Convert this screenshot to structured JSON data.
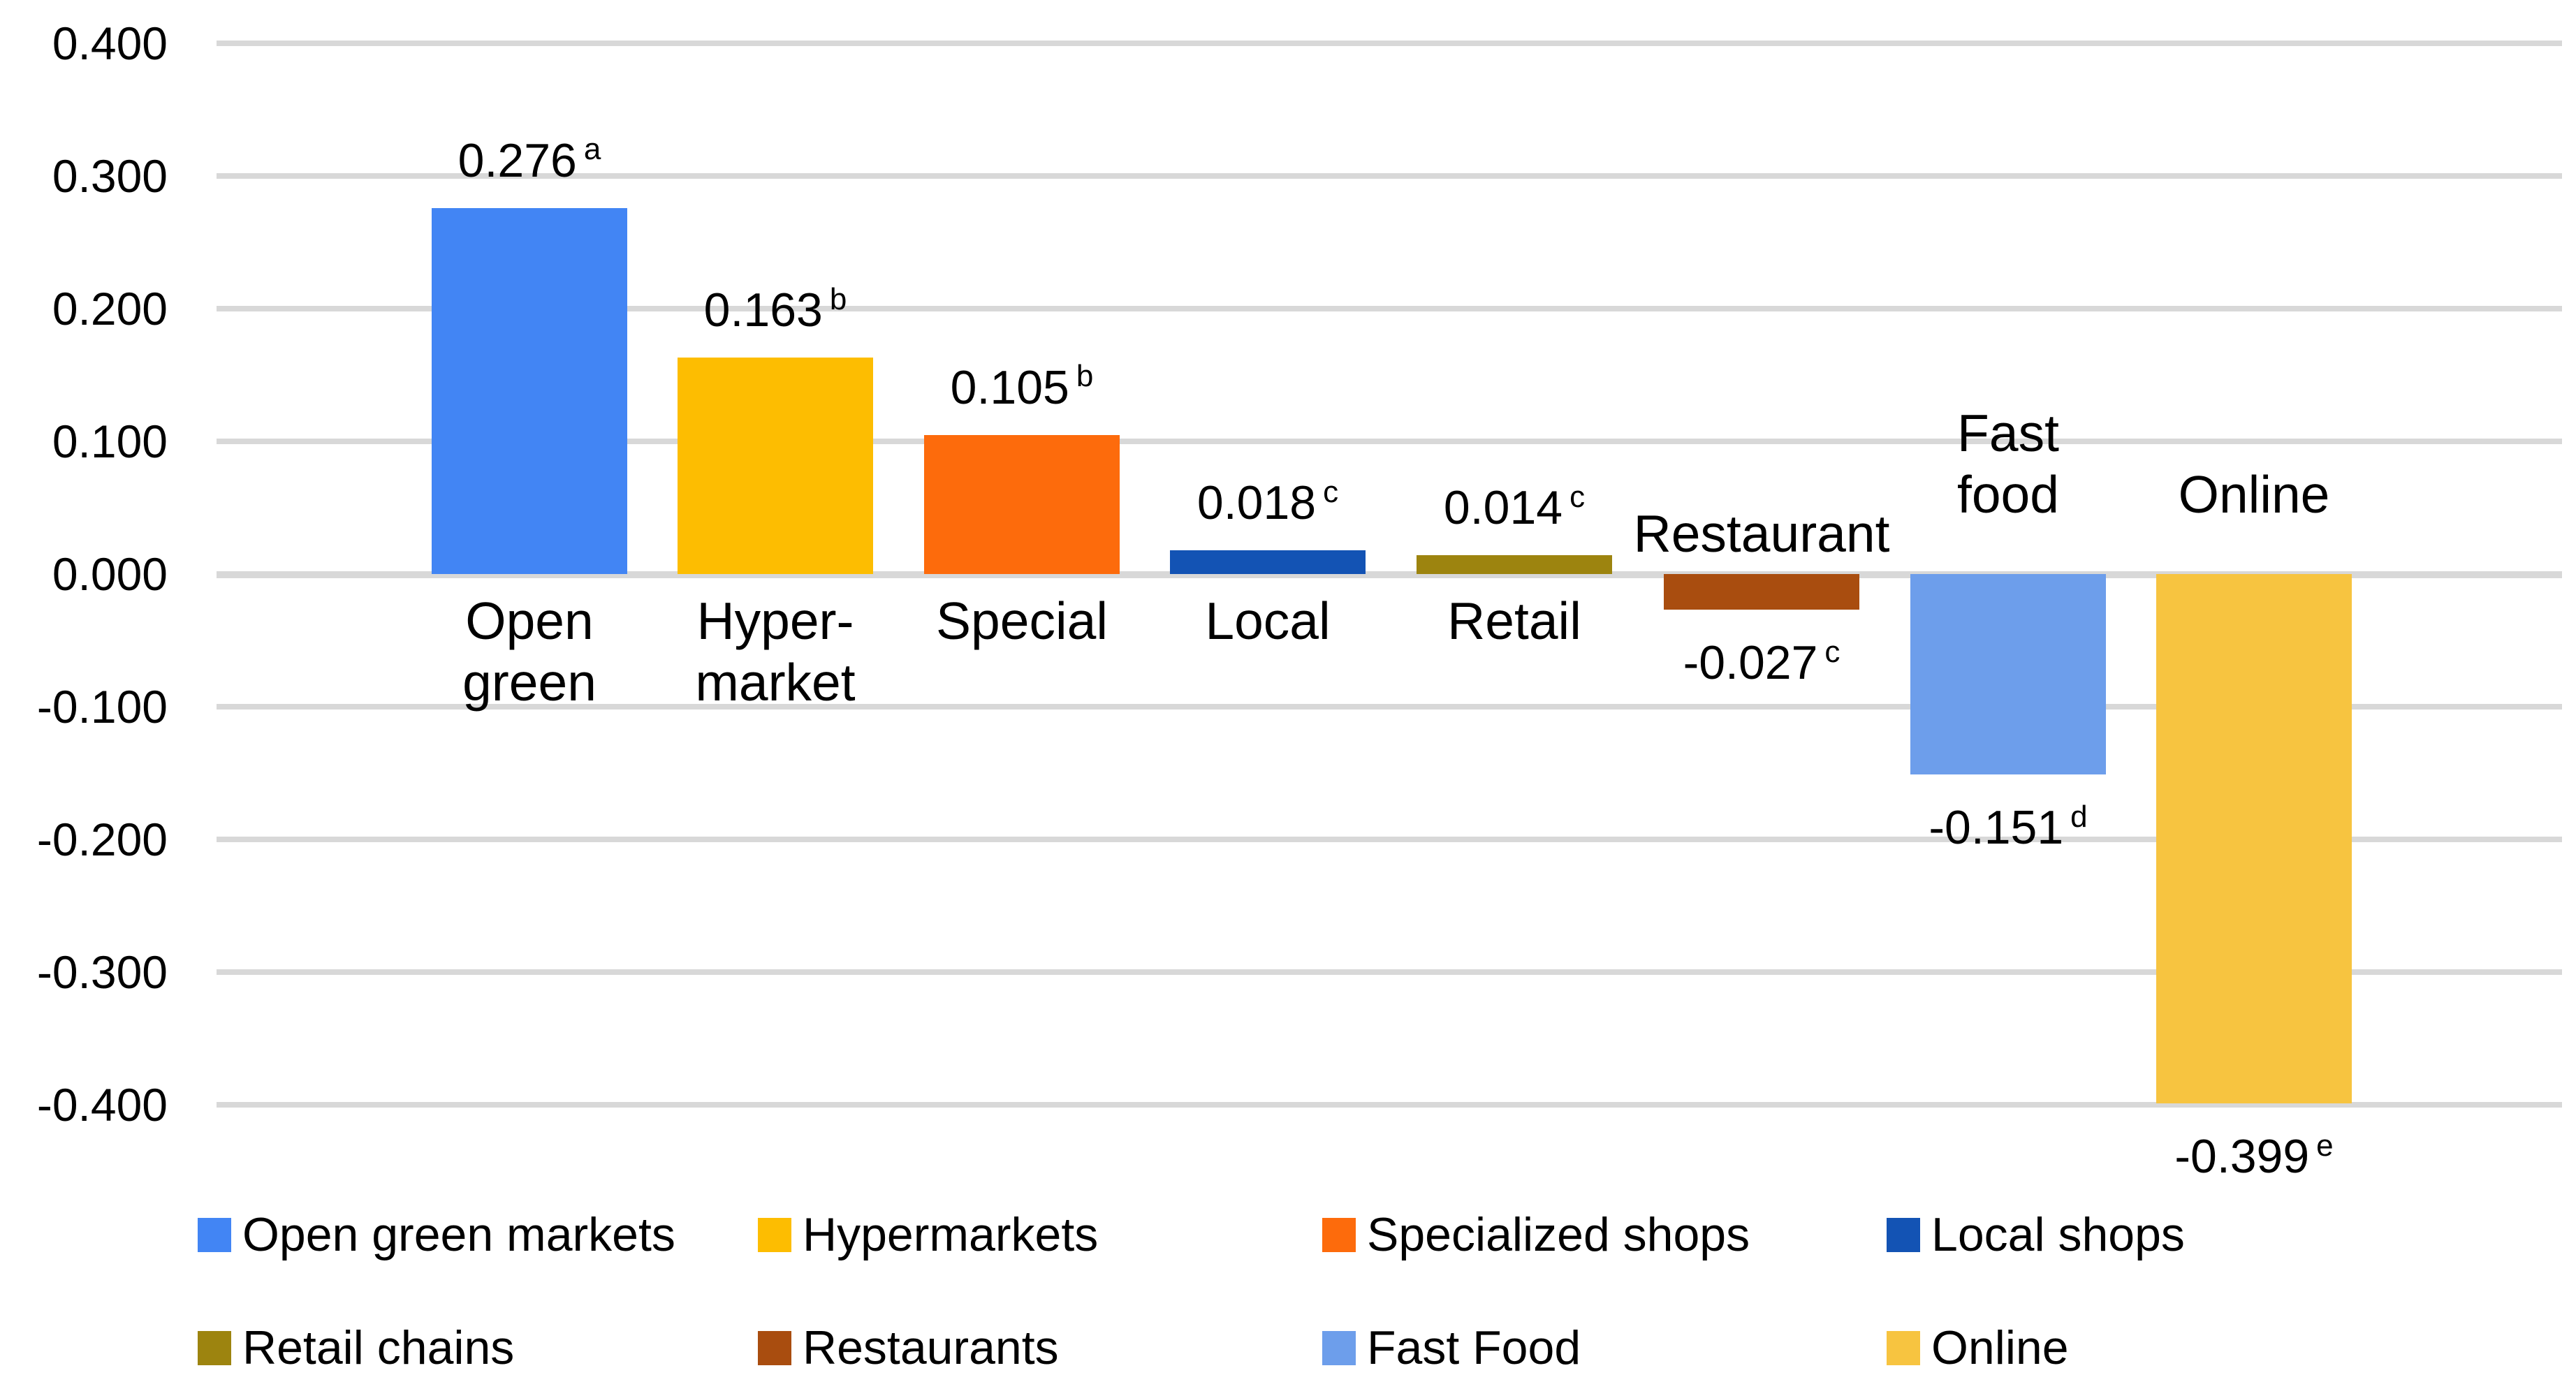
{
  "chart_data": {
    "type": "bar",
    "title": "",
    "categories": [
      "Open\ngreen",
      "Hyper-\nmarket",
      "Special",
      "Local",
      "Retail",
      "Restaurant",
      "Fast\nfood",
      "Online"
    ],
    "values": [
      0.276,
      0.163,
      0.105,
      0.018,
      0.014,
      -0.027,
      -0.151,
      -0.399
    ],
    "value_labels": [
      "0.276",
      "0.163",
      "0.105",
      "0.018",
      "0.014",
      "-0.027",
      "-0.151",
      "-0.399"
    ],
    "superscripts": [
      "a",
      "b",
      "b",
      "c",
      "c",
      "c",
      "d",
      "e"
    ],
    "bar_colors": [
      "#4285F4",
      "#FDBD01",
      "#FD6B0C",
      "#1353B4",
      "#9D840F",
      "#A94D0F",
      "#6D9EEB",
      "#F7C440"
    ],
    "y_axis": {
      "min": -0.4,
      "max": 0.4,
      "step": 0.1,
      "tick_labels": [
        "0.400",
        "0.300",
        "0.200",
        "0.100",
        "0.000",
        "-0.100",
        "-0.200",
        "-0.300",
        "-0.400"
      ]
    },
    "grid": true,
    "legend": {
      "position": "bottom",
      "rows": 2,
      "entries": [
        {
          "label": "Open green markets",
          "color": "#4285F4"
        },
        {
          "label": "Hypermarkets",
          "color": "#FDBD01"
        },
        {
          "label": "Specialized shops",
          "color": "#FD6B0C"
        },
        {
          "label": "Local shops",
          "color": "#1353B4"
        },
        {
          "label": "Retail chains",
          "color": "#9D840F"
        },
        {
          "label": "Restaurants",
          "color": "#A94D0F"
        },
        {
          "label": "Fast Food",
          "color": "#6D9EEB"
        },
        {
          "label": "Online",
          "color": "#F7C440"
        }
      ]
    }
  },
  "colors": {
    "background": "#FFFFFF",
    "gridline": "#D8D8D8",
    "text": "#000000"
  }
}
